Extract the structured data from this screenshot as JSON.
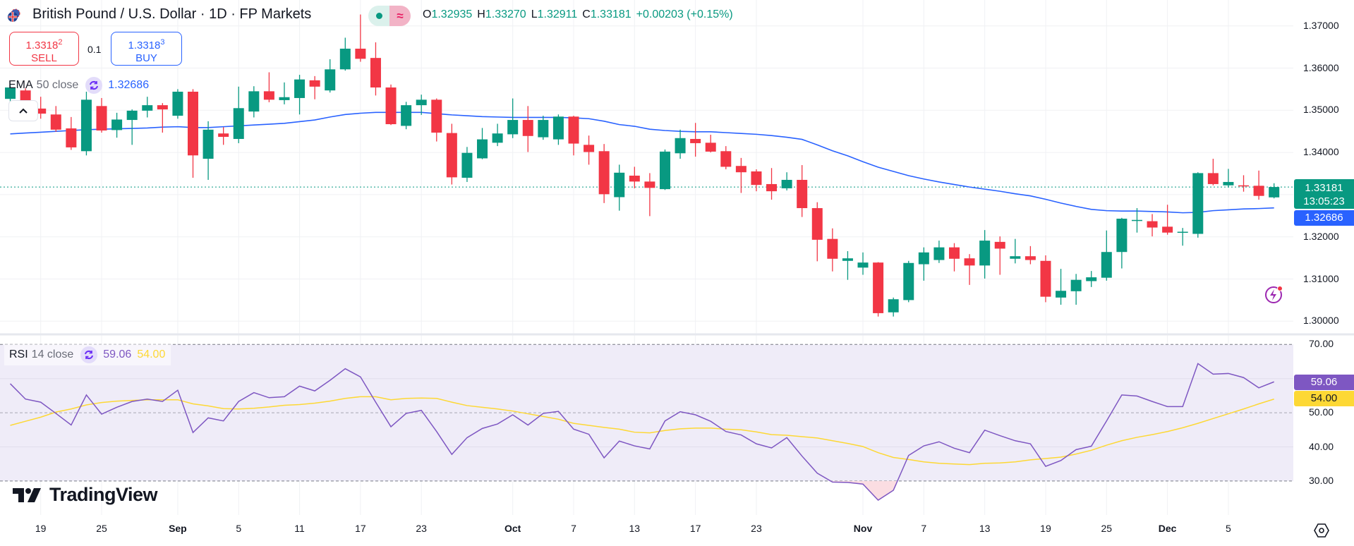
{
  "header": {
    "title": "British Pound / U.S. Dollar · 1D · FP Markets",
    "market_status_icon": "market-open-dot",
    "data_status_icon": "delayed-data-wave",
    "ohlc": {
      "o_label": "O",
      "o": "1.32935",
      "h_label": "H",
      "h": "1.33270",
      "l_label": "L",
      "l": "1.32911",
      "c_label": "C",
      "c": "1.33181",
      "change": "+0.00203 (+0.15%)"
    }
  },
  "trade": {
    "sell_price": "1.3318",
    "sell_price_sup": "2",
    "sell_label": "SELL",
    "quantity": "0.1",
    "buy_price": "1.3318",
    "buy_price_sup": "3",
    "buy_label": "BUY"
  },
  "ema_legend": {
    "name": "EMA",
    "args": "50 close",
    "value": "1.32686"
  },
  "rsi_legend": {
    "name": "RSI",
    "args": "14 close",
    "value": "59.06",
    "ma_value": "54.00"
  },
  "price_axis": {
    "ticks": [
      "1.37000",
      "1.36000",
      "1.35000",
      "1.34000",
      "1.32000",
      "1.31000",
      "1.30000"
    ],
    "last_price": "1.33181",
    "countdown": "13:05:23",
    "ema_tag": "1.32686"
  },
  "rsi_axis": {
    "ticks": [
      "70.00",
      "50.00",
      "40.00",
      "30.00"
    ],
    "rsi_tag": "59.06",
    "ma_tag": "54.00"
  },
  "time_axis": [
    {
      "label": "19",
      "date": "Aug 19"
    },
    {
      "label": "25",
      "date": "Aug 25"
    },
    {
      "label": "Sep",
      "date": "Sep 1"
    },
    {
      "label": "5",
      "date": "Sep 5"
    },
    {
      "label": "11",
      "date": "Sep 11"
    },
    {
      "label": "17",
      "date": "Sep 17"
    },
    {
      "label": "23",
      "date": "Sep 23"
    },
    {
      "label": "Oct",
      "date": "Oct 1"
    },
    {
      "label": "7",
      "date": "Oct 7"
    },
    {
      "label": "13",
      "date": "Oct 13"
    },
    {
      "label": "17",
      "date": "Oct 17"
    },
    {
      "label": "23",
      "date": "Oct 23"
    },
    {
      "label": "Nov",
      "date": "Nov 3"
    },
    {
      "label": "7",
      "date": "Nov 7"
    },
    {
      "label": "13",
      "date": "Nov 13"
    },
    {
      "label": "19",
      "date": "Nov 19"
    },
    {
      "label": "25",
      "date": "Nov 25"
    },
    {
      "label": "Dec",
      "date": "Dec 1"
    },
    {
      "label": "5",
      "date": "Dec 5"
    }
  ],
  "branding": {
    "logo_text": "TradingView"
  },
  "colors": {
    "up": "#089981",
    "down": "#F23645",
    "ema": "#2962FF",
    "rsi": "#7E57C2",
    "rsi_ma": "#FDD835",
    "rsi_band": "#EFECF8",
    "sell": "#F23645",
    "buy": "#2962FF"
  },
  "chart_data": {
    "type": "candlestick",
    "symbol": "British Pound / U.S. Dollar",
    "interval": "1D",
    "price_ylim": [
      1.2955,
      1.3762
    ],
    "rsi_ylim": [
      20,
      72
    ],
    "rsi_levels": [
      70,
      50,
      30
    ],
    "grid": true,
    "columns": [
      "date",
      "open",
      "high",
      "low",
      "close",
      "ema50",
      "rsi14",
      "rsi_ma"
    ],
    "candles": [
      [
        "Aug 15",
        1.3527,
        1.356,
        1.352,
        1.3554,
        1.3444,
        58.5,
        46.3
      ],
      [
        "Aug 18",
        1.3547,
        1.3552,
        1.3498,
        1.3502,
        1.3446,
        54.0,
        47.5
      ],
      [
        "Aug 19",
        1.3504,
        1.3532,
        1.348,
        1.3492,
        1.3448,
        53.1,
        48.7
      ],
      [
        "Aug 20",
        1.349,
        1.351,
        1.3449,
        1.3454,
        1.345,
        49.8,
        50.2
      ],
      [
        "Aug 21",
        1.3457,
        1.3484,
        1.3406,
        1.3412,
        1.3452,
        46.4,
        51.1
      ],
      [
        "Aug 22",
        1.3403,
        1.3544,
        1.3393,
        1.3525,
        1.3454,
        55.2,
        52.3
      ],
      [
        "Aug 25",
        1.351,
        1.3529,
        1.3447,
        1.3452,
        1.3455,
        49.6,
        53.0
      ],
      [
        "Aug 26",
        1.3453,
        1.3494,
        1.3435,
        1.3478,
        1.3456,
        51.6,
        53.4
      ],
      [
        "Aug 27",
        1.3477,
        1.3502,
        1.3418,
        1.3499,
        1.3457,
        53.3,
        53.6
      ],
      [
        "Aug 28",
        1.3499,
        1.3532,
        1.3483,
        1.3512,
        1.3458,
        54.0,
        53.8
      ],
      [
        "Aug 29",
        1.3512,
        1.3517,
        1.3447,
        1.3502,
        1.346,
        53.3,
        53.8
      ],
      [
        "Sep 1",
        1.3487,
        1.355,
        1.348,
        1.3544,
        1.3461,
        56.6,
        53.8
      ],
      [
        "Sep 2",
        1.3544,
        1.355,
        1.334,
        1.3393,
        1.3459,
        44.2,
        52.6
      ],
      [
        "Sep 3",
        1.3385,
        1.3474,
        1.3335,
        1.3454,
        1.3459,
        48.5,
        52.0
      ],
      [
        "Sep 4",
        1.3445,
        1.346,
        1.3418,
        1.3437,
        1.3461,
        47.6,
        51.2
      ],
      [
        "Sep 5",
        1.3432,
        1.3556,
        1.3422,
        1.3505,
        1.3463,
        53.3,
        51.1
      ],
      [
        "Sep 8",
        1.3497,
        1.3557,
        1.3483,
        1.3545,
        1.3465,
        55.9,
        51.3
      ],
      [
        "Sep 9",
        1.3545,
        1.359,
        1.3519,
        1.3525,
        1.3467,
        54.4,
        51.7
      ],
      [
        "Sep 10",
        1.3524,
        1.3566,
        1.3514,
        1.3531,
        1.3469,
        54.7,
        52.2
      ],
      [
        "Sep 11",
        1.3529,
        1.3584,
        1.349,
        1.3573,
        1.3473,
        57.8,
        52.4
      ],
      [
        "Sep 12",
        1.3571,
        1.3581,
        1.3526,
        1.3556,
        1.3477,
        56.4,
        52.8
      ],
      [
        "Sep 15",
        1.3547,
        1.3621,
        1.3542,
        1.3597,
        1.3484,
        59.5,
        53.4
      ],
      [
        "Sep 16",
        1.3597,
        1.3672,
        1.3594,
        1.3646,
        1.349,
        62.9,
        54.2
      ],
      [
        "Sep 17",
        1.3646,
        1.3727,
        1.3615,
        1.3622,
        1.3493,
        60.5,
        54.7
      ],
      [
        "Sep 18",
        1.3624,
        1.3661,
        1.3535,
        1.3554,
        1.3495,
        53.1,
        54.7
      ],
      [
        "Sep 19",
        1.3554,
        1.3561,
        1.3465,
        1.3467,
        1.3495,
        45.9,
        53.8
      ],
      [
        "Sep 22",
        1.3463,
        1.352,
        1.3455,
        1.3512,
        1.3495,
        49.8,
        54.2
      ],
      [
        "Sep 23",
        1.3512,
        1.3537,
        1.3489,
        1.3525,
        1.3495,
        50.7,
        54.3
      ],
      [
        "Sep 24",
        1.3525,
        1.3528,
        1.3426,
        1.3447,
        1.3492,
        44.5,
        54.2
      ],
      [
        "Sep 25",
        1.3446,
        1.3468,
        1.3324,
        1.3341,
        1.3489,
        37.8,
        53.1
      ],
      [
        "Sep 26",
        1.334,
        1.3413,
        1.333,
        1.3399,
        1.3487,
        42.7,
        52.1
      ],
      [
        "Sep 29",
        1.3386,
        1.3458,
        1.3384,
        1.3431,
        1.3485,
        45.4,
        51.6
      ],
      [
        "Sep 30",
        1.3423,
        1.3468,
        1.3415,
        1.3445,
        1.3484,
        46.7,
        51.1
      ],
      [
        "Oct 1",
        1.3443,
        1.3528,
        1.3434,
        1.3477,
        1.3483,
        49.4,
        50.5
      ],
      [
        "Oct 2",
        1.3477,
        1.351,
        1.3401,
        1.3439,
        1.3483,
        46.4,
        49.7
      ],
      [
        "Oct 3",
        1.3436,
        1.3487,
        1.343,
        1.3477,
        1.3483,
        49.8,
        48.9
      ],
      [
        "Oct 6",
        1.3431,
        1.349,
        1.3418,
        1.3485,
        1.3483,
        50.4,
        48.1
      ],
      [
        "Oct 7",
        1.3485,
        1.3487,
        1.3393,
        1.3421,
        1.3482,
        45.2,
        46.9
      ],
      [
        "Oct 8",
        1.3418,
        1.344,
        1.3371,
        1.3401,
        1.348,
        43.7,
        46.3
      ],
      [
        "Oct 9",
        1.3403,
        1.342,
        1.328,
        1.3301,
        1.3474,
        36.8,
        45.7
      ],
      [
        "Oct 10",
        1.3294,
        1.3371,
        1.3262,
        1.3352,
        1.3466,
        41.7,
        45.2
      ],
      [
        "Oct 13",
        1.3345,
        1.3366,
        1.3315,
        1.3331,
        1.3462,
        40.3,
        44.3
      ],
      [
        "Oct 14",
        1.3331,
        1.3351,
        1.3249,
        1.3316,
        1.3455,
        39.4,
        44.1
      ],
      [
        "Oct 15",
        1.3313,
        1.3407,
        1.3311,
        1.3402,
        1.3452,
        47.6,
        44.8
      ],
      [
        "Oct 16",
        1.3398,
        1.3454,
        1.3385,
        1.3434,
        1.345,
        50.3,
        45.3
      ],
      [
        "Oct 17",
        1.3432,
        1.347,
        1.339,
        1.3422,
        1.3449,
        49.4,
        45.5
      ],
      [
        "Oct 20",
        1.3423,
        1.3442,
        1.34,
        1.3402,
        1.3449,
        47.5,
        45.5
      ],
      [
        "Oct 21",
        1.3403,
        1.3415,
        1.336,
        1.3366,
        1.3447,
        44.5,
        45.2
      ],
      [
        "Oct 22",
        1.3368,
        1.3387,
        1.3304,
        1.3353,
        1.3445,
        43.5,
        45.0
      ],
      [
        "Oct 23",
        1.3355,
        1.336,
        1.3308,
        1.3323,
        1.3443,
        40.9,
        44.4
      ],
      [
        "Oct 24",
        1.3325,
        1.3363,
        1.3288,
        1.3308,
        1.344,
        39.7,
        43.6
      ],
      [
        "Oct 27",
        1.3315,
        1.3353,
        1.331,
        1.3335,
        1.3436,
        42.7,
        43.4
      ],
      [
        "Oct 28",
        1.3335,
        1.337,
        1.3247,
        1.3268,
        1.3431,
        37.3,
        43.0
      ],
      [
        "Oct 29",
        1.3268,
        1.3282,
        1.3142,
        1.3193,
        1.3418,
        32.3,
        42.6
      ],
      [
        "Oct 30",
        1.3195,
        1.322,
        1.3118,
        1.3148,
        1.3404,
        29.7,
        41.8
      ],
      [
        "Oct 31",
        1.3143,
        1.3166,
        1.3098,
        1.3149,
        1.3392,
        29.6,
        41.0
      ],
      [
        "Nov 3",
        1.3127,
        1.3163,
        1.311,
        1.3139,
        1.3378,
        29.1,
        40.1
      ],
      [
        "Nov 4",
        1.3139,
        1.314,
        1.3011,
        1.3019,
        1.3365,
        24.4,
        38.3
      ],
      [
        "Nov 5",
        1.3021,
        1.3056,
        1.3011,
        1.3052,
        1.3355,
        27.3,
        36.9
      ],
      [
        "Nov 6",
        1.305,
        1.3143,
        1.3045,
        1.3138,
        1.3345,
        37.5,
        36.3
      ],
      [
        "Nov 7",
        1.3135,
        1.3175,
        1.3096,
        1.3163,
        1.3337,
        40.3,
        35.6
      ],
      [
        "Nov 10",
        1.3145,
        1.3191,
        1.3138,
        1.3175,
        1.333,
        41.5,
        35.2
      ],
      [
        "Nov 11",
        1.3175,
        1.3185,
        1.3118,
        1.3148,
        1.3324,
        39.6,
        35.0
      ],
      [
        "Nov 12",
        1.3149,
        1.3159,
        1.3086,
        1.3132,
        1.3318,
        38.3,
        34.8
      ],
      [
        "Nov 13",
        1.3132,
        1.3216,
        1.3101,
        1.3191,
        1.3313,
        44.9,
        35.2
      ],
      [
        "Nov 14",
        1.3188,
        1.3201,
        1.311,
        1.3172,
        1.3308,
        43.3,
        35.3
      ],
      [
        "Nov 17",
        1.3148,
        1.3195,
        1.3137,
        1.3154,
        1.3302,
        41.8,
        35.6
      ],
      [
        "Nov 18",
        1.3154,
        1.3178,
        1.3135,
        1.3145,
        1.3297,
        40.9,
        36.2
      ],
      [
        "Nov 19",
        1.3143,
        1.3156,
        1.3045,
        1.3058,
        1.3289,
        34.3,
        36.6
      ],
      [
        "Nov 20",
        1.3056,
        1.3124,
        1.3039,
        1.3072,
        1.328,
        36.0,
        37.0
      ],
      [
        "Nov 21",
        1.3071,
        1.3112,
        1.3039,
        1.3098,
        1.3272,
        39.2,
        37.9
      ],
      [
        "Nov 24",
        1.3095,
        1.3119,
        1.3081,
        1.3104,
        1.3265,
        40.2,
        39.0
      ],
      [
        "Nov 25",
        1.3103,
        1.3215,
        1.3096,
        1.3164,
        1.3262,
        47.6,
        40.5
      ],
      [
        "Nov 26",
        1.3164,
        1.3245,
        1.3125,
        1.3243,
        1.3261,
        55.2,
        41.8
      ],
      [
        "Nov 27",
        1.3238,
        1.3268,
        1.321,
        1.324,
        1.3261,
        54.9,
        42.8
      ],
      [
        "Nov 28",
        1.3237,
        1.3254,
        1.3201,
        1.3222,
        1.326,
        53.3,
        43.6
      ],
      [
        "Dec 1",
        1.3224,
        1.3276,
        1.3205,
        1.321,
        1.3259,
        51.8,
        44.5
      ],
      [
        "Dec 2",
        1.3211,
        1.3221,
        1.3179,
        1.3212,
        1.3257,
        51.8,
        45.6
      ],
      [
        "Dec 3",
        1.3207,
        1.3353,
        1.3198,
        1.3351,
        1.3258,
        64.4,
        46.9
      ],
      [
        "Dec 4",
        1.3351,
        1.3385,
        1.3322,
        1.3325,
        1.3262,
        61.3,
        48.3
      ],
      [
        "Dec 5",
        1.3322,
        1.3361,
        1.3317,
        1.333,
        1.3264,
        61.5,
        49.7
      ],
      [
        "Dec 8",
        1.3322,
        1.3346,
        1.3307,
        1.332,
        1.3266,
        60.3,
        51.1
      ],
      [
        "Dec 9",
        1.3321,
        1.3357,
        1.3288,
        1.3297,
        1.3267,
        57.3,
        52.6
      ],
      [
        "Dec 10",
        1.32935,
        1.3327,
        1.32911,
        1.33181,
        1.32686,
        59.06,
        54.0
      ]
    ]
  }
}
